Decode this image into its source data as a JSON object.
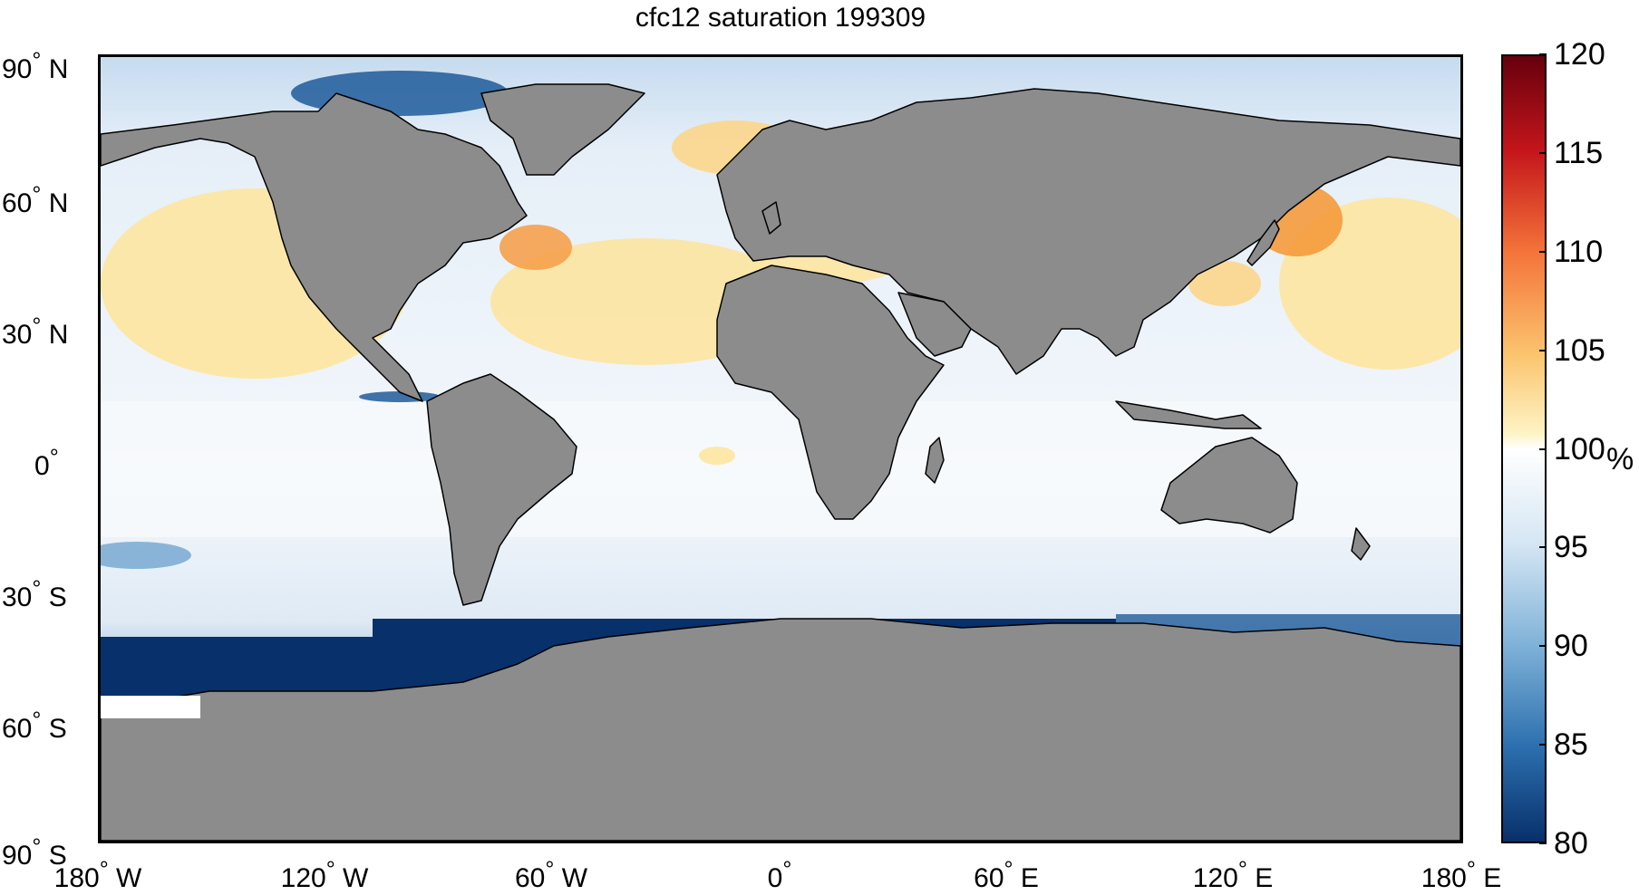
{
  "title": "cfc12 saturation 199309",
  "lat_labels": [
    {
      "deg": "90",
      "hemi": "N"
    },
    {
      "deg": "60",
      "hemi": "N"
    },
    {
      "deg": "30",
      "hemi": "N"
    },
    {
      "deg": "0",
      "hemi": ""
    },
    {
      "deg": "30",
      "hemi": "S"
    },
    {
      "deg": "60",
      "hemi": "S"
    },
    {
      "deg": "90",
      "hemi": "S"
    }
  ],
  "lon_labels": [
    {
      "deg": "180",
      "hemi": "W"
    },
    {
      "deg": "120",
      "hemi": "W"
    },
    {
      "deg": "60",
      "hemi": "W"
    },
    {
      "deg": "0",
      "hemi": ""
    },
    {
      "deg": "60",
      "hemi": "E"
    },
    {
      "deg": "120",
      "hemi": "E"
    },
    {
      "deg": "180",
      "hemi": "E"
    }
  ],
  "colorbar": {
    "ticks": [
      "120",
      "115",
      "110",
      "105",
      "100",
      "95",
      "90",
      "85",
      "80"
    ],
    "unit": "%",
    "min": 80,
    "max": 120
  },
  "colors": {
    "land": "#8c8c8c",
    "ocean_base": "#eaf1f8",
    "deep_blue": "#08306b",
    "mid_blue": "#2c6fae",
    "light_blue": "#c6dbef",
    "warm": "#fde9a6",
    "orange": "#f59a3c",
    "red": "#b2182b"
  }
}
